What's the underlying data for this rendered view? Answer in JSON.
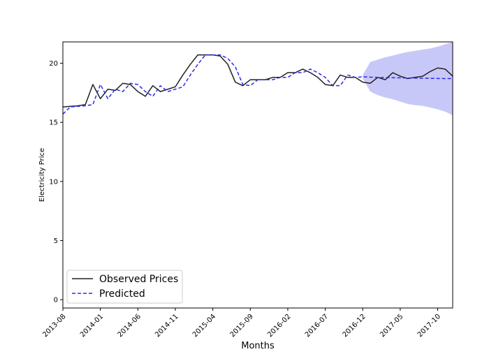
{
  "chart_data": {
    "type": "line",
    "title": "",
    "xlabel": "Months",
    "ylabel": "Electricity Price",
    "ylim": [
      -0.7,
      21.8
    ],
    "xlim": [
      "2013-08",
      "2017-12"
    ],
    "grid": false,
    "legend_position": "lower-left",
    "x_tick_labels": [
      "2013-08",
      "2014-01",
      "2014-06",
      "2014-11",
      "2015-04",
      "2015-09",
      "2016-02",
      "2016-07",
      "2016-12",
      "2017-05",
      "2017-10"
    ],
    "y_ticks": [
      0,
      5,
      10,
      15,
      20
    ],
    "series": [
      {
        "name": "Observed Prices",
        "color": "#222222",
        "style": "solid",
        "points": [
          [
            "2013-08",
            16.3
          ],
          [
            "2013-09",
            16.35
          ],
          [
            "2013-10",
            16.4
          ],
          [
            "2013-11",
            16.5
          ],
          [
            "2013-12",
            18.2
          ],
          [
            "2014-01",
            17.0
          ],
          [
            "2014-02",
            17.8
          ],
          [
            "2014-03",
            17.7
          ],
          [
            "2014-04",
            18.3
          ],
          [
            "2014-05",
            18.2
          ],
          [
            "2014-06",
            17.6
          ],
          [
            "2014-07",
            17.2
          ],
          [
            "2014-08",
            18.1
          ],
          [
            "2014-09",
            17.6
          ],
          [
            "2014-10",
            17.8
          ],
          [
            "2014-11",
            18.0
          ],
          [
            "2014-12",
            19.0
          ],
          [
            "2015-01",
            19.9
          ],
          [
            "2015-02",
            20.7
          ],
          [
            "2015-03",
            20.7
          ],
          [
            "2015-04",
            20.7
          ],
          [
            "2015-05",
            20.6
          ],
          [
            "2015-06",
            19.9
          ],
          [
            "2015-07",
            18.4
          ],
          [
            "2015-08",
            18.1
          ],
          [
            "2015-09",
            18.6
          ],
          [
            "2015-10",
            18.6
          ],
          [
            "2015-11",
            18.6
          ],
          [
            "2015-12",
            18.8
          ],
          [
            "2016-01",
            18.8
          ],
          [
            "2016-02",
            19.2
          ],
          [
            "2016-03",
            19.2
          ],
          [
            "2016-04",
            19.5
          ],
          [
            "2016-05",
            19.2
          ],
          [
            "2016-06",
            18.8
          ],
          [
            "2016-07",
            18.2
          ],
          [
            "2016-08",
            18.1
          ],
          [
            "2016-09",
            19.0
          ],
          [
            "2016-10",
            18.8
          ],
          [
            "2016-11",
            18.8
          ],
          [
            "2016-12",
            18.4
          ],
          [
            "2017-01",
            18.3
          ],
          [
            "2017-02",
            18.8
          ],
          [
            "2017-03",
            18.6
          ],
          [
            "2017-04",
            19.2
          ],
          [
            "2017-05",
            18.9
          ],
          [
            "2017-06",
            18.7
          ],
          [
            "2017-07",
            18.8
          ],
          [
            "2017-08",
            18.9
          ],
          [
            "2017-09",
            19.3
          ],
          [
            "2017-10",
            19.6
          ],
          [
            "2017-11",
            19.5
          ],
          [
            "2017-12",
            18.9
          ]
        ]
      },
      {
        "name": "Predicted",
        "color": "#2b2bea",
        "style": "dashed",
        "points": [
          [
            "2013-08",
            15.7
          ],
          [
            "2013-09",
            16.3
          ],
          [
            "2013-10",
            16.35
          ],
          [
            "2013-11",
            16.4
          ],
          [
            "2013-12",
            16.5
          ],
          [
            "2014-01",
            18.2
          ],
          [
            "2014-02",
            17.0
          ],
          [
            "2014-03",
            17.8
          ],
          [
            "2014-04",
            17.6
          ],
          [
            "2014-05",
            18.3
          ],
          [
            "2014-06",
            18.2
          ],
          [
            "2014-07",
            17.6
          ],
          [
            "2014-08",
            17.2
          ],
          [
            "2014-09",
            18.1
          ],
          [
            "2014-10",
            17.6
          ],
          [
            "2014-11",
            17.8
          ],
          [
            "2014-12",
            18.0
          ],
          [
            "2015-01",
            19.0
          ],
          [
            "2015-02",
            19.9
          ],
          [
            "2015-03",
            20.7
          ],
          [
            "2015-04",
            20.7
          ],
          [
            "2015-05",
            20.7
          ],
          [
            "2015-06",
            20.4
          ],
          [
            "2015-07",
            19.7
          ],
          [
            "2015-08",
            18.2
          ],
          [
            "2015-09",
            18.1
          ],
          [
            "2015-10",
            18.6
          ],
          [
            "2015-11",
            18.6
          ],
          [
            "2015-12",
            18.6
          ],
          [
            "2016-01",
            18.8
          ],
          [
            "2016-02",
            18.8
          ],
          [
            "2016-03",
            19.2
          ],
          [
            "2016-04",
            19.2
          ],
          [
            "2016-05",
            19.5
          ],
          [
            "2016-06",
            19.2
          ],
          [
            "2016-07",
            18.8
          ],
          [
            "2016-08",
            18.1
          ],
          [
            "2016-09",
            18.1
          ],
          [
            "2016-10",
            19.0
          ],
          [
            "2016-11",
            18.8
          ],
          [
            "2016-12",
            18.85
          ],
          [
            "2017-01",
            18.82
          ],
          [
            "2017-02",
            18.8
          ],
          [
            "2017-03",
            18.78
          ],
          [
            "2017-04",
            18.77
          ],
          [
            "2017-05",
            18.76
          ],
          [
            "2017-06",
            18.75
          ],
          [
            "2017-07",
            18.74
          ],
          [
            "2017-08",
            18.73
          ],
          [
            "2017-09",
            18.72
          ],
          [
            "2017-10",
            18.71
          ],
          [
            "2017-11",
            18.7
          ],
          [
            "2017-12",
            18.7
          ]
        ]
      }
    ],
    "confidence_band": {
      "color": "#c8c8f8",
      "points": [
        [
          "2016-12",
          19.0,
          18.7
        ],
        [
          "2017-01",
          20.1,
          17.6
        ],
        [
          "2017-02",
          20.3,
          17.3
        ],
        [
          "2017-03",
          20.5,
          17.1
        ],
        [
          "2017-04",
          20.65,
          16.95
        ],
        [
          "2017-05",
          20.8,
          16.75
        ],
        [
          "2017-06",
          20.95,
          16.55
        ],
        [
          "2017-07",
          21.05,
          16.45
        ],
        [
          "2017-08",
          21.15,
          16.4
        ],
        [
          "2017-09",
          21.25,
          16.25
        ],
        [
          "2017-10",
          21.4,
          16.1
        ],
        [
          "2017-11",
          21.6,
          15.9
        ],
        [
          "2017-12",
          21.8,
          15.6
        ]
      ]
    }
  }
}
